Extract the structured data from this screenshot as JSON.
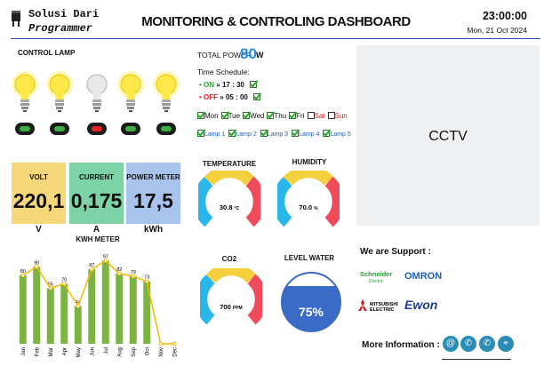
{
  "header": {
    "brand_line1": "Solusi Dari",
    "brand_line2": "Programmer",
    "title": "MONITORING & CONTROLING DASHBOARD",
    "time": "23:00:00",
    "date": "Mon, 21 Oct 2024"
  },
  "control_lamp": {
    "title": "CONTROL LAMP",
    "lamps": [
      {
        "state": "on"
      },
      {
        "state": "on"
      },
      {
        "state": "off"
      },
      {
        "state": "on"
      },
      {
        "state": "on"
      }
    ]
  },
  "power": {
    "label": "TOTAL POWER :",
    "value": "80",
    "unit": "W"
  },
  "schedule": {
    "label": "Time Schedule:",
    "on": {
      "label": "ON",
      "arrow": "»",
      "time": "17 : 30"
    },
    "off": {
      "label": "OFF",
      "arrow": "»",
      "time": "05 : 00"
    },
    "days": [
      {
        "label": "Mon",
        "checked": true
      },
      {
        "label": "Tue",
        "checked": true
      },
      {
        "label": "Wed",
        "checked": true
      },
      {
        "label": "Thu",
        "checked": true
      },
      {
        "label": "Fri",
        "checked": true
      },
      {
        "label": "Sat",
        "checked": false
      },
      {
        "label": "Sun",
        "checked": false
      }
    ],
    "lamps": [
      "Lamp 1",
      "Lamp 2",
      "Lamp 3",
      "Lamp 4",
      "Lamp 5"
    ]
  },
  "cctv": {
    "label": "CCTV"
  },
  "meters": {
    "volt": {
      "label": "VOLT",
      "value": "220,1",
      "unit": "V"
    },
    "current": {
      "label": "CURRENT",
      "value": "0,175",
      "unit": "A"
    },
    "power_meter": {
      "label": "POWER METER",
      "value": "17,5",
      "unit": "kWh"
    }
  },
  "gauges": {
    "temperature": {
      "label": "TEMPERATURE",
      "value": "30.8",
      "unit": "°C",
      "level": 0.6
    },
    "humidity": {
      "label": "HUMIDITY",
      "value": "70.0",
      "unit": "%",
      "level": 0.7
    },
    "co2": {
      "label": "CO2",
      "value": "700",
      "unit": "PPM",
      "level": 0.5
    },
    "level_water": {
      "label": "LEVEL WATER",
      "value": "75%",
      "level": 0.75
    }
  },
  "chart_data": {
    "type": "bar",
    "title": "KWH METER",
    "categories": [
      "Jan",
      "Feb",
      "Mar",
      "Apr",
      "May",
      "Jun",
      "Jul",
      "Aug",
      "Sep",
      "Oct",
      "Nov",
      "Dec"
    ],
    "series": [
      {
        "values": [
          80,
          90,
          65,
          70,
          44,
          87,
          97,
          82,
          79,
          73,
          0,
          0
        ]
      }
    ],
    "ylim": [
      0,
      110
    ],
    "colors": {
      "bar": "#7cb342",
      "line": "#f5b800"
    }
  },
  "support": {
    "title": "We are Support :",
    "brands": [
      "Schneider",
      "Electric",
      "OMRON",
      "MITSUBISHI",
      "ELECTRIC",
      "Ewon"
    ],
    "more_info": "More Information :",
    "icons": [
      "at-icon",
      "phone-icon",
      "whatsapp-icon",
      "location-icon"
    ]
  },
  "colors": {
    "volt": "#f6d77a",
    "current": "#7ed3a6",
    "power_meter": "#a9c4ec",
    "accent": "#2b4fa3"
  }
}
